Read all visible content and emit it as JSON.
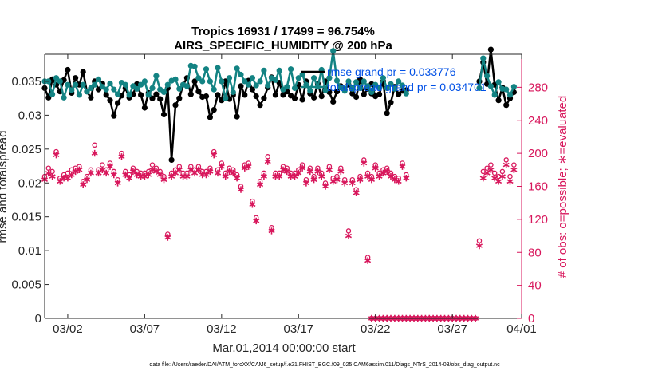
{
  "chart_data": {
    "type": "line",
    "title": "Tropics 16931 / 17499 = 96.754%",
    "subtitle": "AIRS_SPECIFIC_HUMIDITY @ 200 hPa",
    "xlabel": "Mar.01,2014 00:00:00 start",
    "ylabel": "rmse and totalspread",
    "y2label": "# of obs: o=possible; ∗=evaluated",
    "footer": "data file: /Users/raeder/DAI/ATM_forcXX/CAM6_setup/f.e21.FHIST_BGC.f09_025.CAM6assim.011/Diags_NTrS_2014-03/obs_diag_output.nc",
    "legend": [
      "rmse grand pr = 0.033776",
      "totalspread grand pr = 0.034701"
    ],
    "xlim": [
      0.5,
      31.5
    ],
    "ylim": [
      0,
      0.039
    ],
    "y2lim": [
      0,
      320
    ],
    "x_ticks": [
      {
        "x": 2,
        "label": "03/02"
      },
      {
        "x": 7,
        "label": "03/07"
      },
      {
        "x": 12,
        "label": "03/12"
      },
      {
        "x": 17,
        "label": "03/17"
      },
      {
        "x": 22,
        "label": "03/22"
      },
      {
        "x": 27,
        "label": "03/27"
      },
      {
        "x": 32,
        "label": "04/01"
      }
    ],
    "y_ticks": [
      "0",
      "0.005",
      "0.01",
      "0.015",
      "0.02",
      "0.025",
      "0.03",
      "0.035"
    ],
    "y_tick_values": [
      0,
      0.005,
      0.01,
      0.015,
      0.02,
      0.025,
      0.03,
      0.035
    ],
    "y2_ticks": [
      "0",
      "40",
      "80",
      "120",
      "160",
      "200",
      "240",
      "280"
    ],
    "y2_tick_values": [
      0,
      40,
      80,
      120,
      160,
      200,
      240,
      280
    ],
    "colors": {
      "rmse": "#000000",
      "spread": "#138383",
      "obs": "#d8175c"
    },
    "series": [
      {
        "name": "rmse",
        "segments": [
          {
            "x0": 0.5,
            "dx": 0.25,
            "values": [
              0.034,
              0.0326,
              0.0353,
              0.0345,
              0.0335,
              0.0352,
              0.0367,
              0.0333,
              0.0355,
              0.0345,
              0.0364,
              0.0335,
              0.0326,
              0.035,
              0.0338,
              0.0347,
              0.033,
              0.0322,
              0.0299,
              0.0318,
              0.0329,
              0.034,
              0.0326,
              0.0331,
              0.0346,
              0.033,
              0.0311,
              0.0333,
              0.0325,
              0.0331,
              0.0324,
              0.0301,
              0.034,
              0.0234,
              0.0315,
              0.0325,
              0.0345,
              0.0355,
              0.0331,
              0.035,
              0.0335,
              0.0327,
              0.0328,
              0.0297,
              0.0308,
              0.033,
              0.0322,
              0.035,
              0.0324,
              0.033,
              0.0298,
              0.0343,
              0.033,
              0.0351,
              0.0338,
              0.0328,
              0.0315,
              0.0325,
              0.0341,
              0.0356,
              0.033,
              0.0348,
              0.033,
              0.0335,
              0.0329,
              0.0325,
              0.0345,
              0.0323,
              0.035,
              0.0332,
              0.0326,
              0.0347,
              0.0328,
              0.035,
              0.0334,
              0.032,
              0.0335,
              0.0343,
              0.0338,
              0.0345,
              0.0332,
              0.0327,
              0.0353,
              0.0331,
              0.0339,
              0.0346,
              0.0328,
              0.0331,
              0.035,
              0.0303,
              0.0319,
              0.0342,
              0.0331,
              0.0336,
              0.0337
            ]
          },
          {
            "x0": 21.5,
            "dx": 0.25,
            "values": [
              0.0341,
              0.0332
            ]
          },
          {
            "x0": 28.75,
            "dx": 0.25,
            "values": [
              0.035,
              0.0378,
              0.0346,
              0.0397,
              0.0345,
              0.0322,
              0.0341,
              0.0315,
              0.0325,
              0.0334
            ]
          }
        ]
      },
      {
        "name": "spread",
        "segments": [
          {
            "x0": 0.5,
            "dx": 0.25,
            "values": [
              0.035,
              0.035,
              0.0331,
              0.0355,
              0.035,
              0.0326,
              0.0345,
              0.0337,
              0.0345,
              0.033,
              0.0345,
              0.0335,
              0.034,
              0.0345,
              0.0353,
              0.0342,
              0.0338,
              0.0347,
              0.0338,
              0.0331,
              0.0348,
              0.0345,
              0.033,
              0.0343,
              0.0339,
              0.0345,
              0.035,
              0.033,
              0.034,
              0.0358,
              0.0338,
              0.0334,
              0.0345,
              0.0351,
              0.0353,
              0.0339,
              0.0345,
              0.0343,
              0.0373,
              0.0372,
              0.0355,
              0.035,
              0.0368,
              0.035,
              0.0338,
              0.037,
              0.035,
              0.0325,
              0.0355,
              0.0334,
              0.0369,
              0.036,
              0.035,
              0.0345,
              0.0355,
              0.0344,
              0.035,
              0.0366,
              0.0344,
              0.0355,
              0.0352,
              0.0366,
              0.0338,
              0.0342,
              0.0368,
              0.034,
              0.0355,
              0.036,
              0.0345,
              0.0336,
              0.0355,
              0.0342,
              0.0367,
              0.0337,
              0.0355,
              0.0395,
              0.0351,
              0.0341,
              0.0336,
              0.035,
              0.0339,
              0.0349,
              0.034,
              0.035,
              0.0342,
              0.0334,
              0.0345,
              0.0341,
              0.0355,
              0.034,
              0.0346,
              0.0339,
              0.035,
              0.0344,
              0.0332
            ]
          },
          {
            "x0": 21.5,
            "dx": 0.25,
            "values": [
              0.0343,
              0.0336
            ]
          },
          {
            "x0": 28.75,
            "dx": 0.25,
            "values": [
              0.034,
              0.0384,
              0.0358,
              0.0343,
              0.033,
              0.0349,
              0.0339,
              0.0338,
              0.033,
              0.0342
            ]
          }
        ]
      }
    ],
    "obs_possible": [
      {
        "x0": 0.5,
        "dx": 0.25,
        "values": [
          172,
          182,
          178,
          202,
          170,
          174,
          176,
          180,
          182,
          184,
          166,
          172,
          180,
          210,
          180,
          186,
          180,
          188,
          178,
          168,
          200,
          178,
          174,
          182,
          178,
          176,
          176,
          178,
          186,
          182,
          178,
          172,
          102,
          176,
          180,
          184,
          176,
          176,
          184,
          180,
          184,
          178,
          178,
          182,
          202,
          180,
          188,
          176,
          182,
          180,
          174,
          160,
          186,
          188,
          142,
          122,
          166,
          176,
          196,
          110,
          176,
          176,
          184,
          182,
          176,
          176,
          180,
          186,
          168,
          182,
          172,
          182,
          176,
          164,
          184,
          170,
          172,
          182,
          168,
          106,
          168,
          156,
          172,
          192,
          176,
          172,
          186,
          176,
          180,
          182,
          176,
          172,
          170,
          188,
          174
        ]
      },
      {
        "x0": 21.5,
        "dx": 0.25,
        "values": [
          74
        ]
      },
      {
        "x0": 28.75,
        "dx": 0.25,
        "values": [
          94,
          178,
          182,
          186,
          176,
          172,
          178,
          192,
          172,
          186
        ]
      }
    ],
    "obs_evaluated_main": [
      {
        "x0": 0.5,
        "dx": 0.25,
        "values": [
          168,
          176,
          172,
          198,
          166,
          170,
          170,
          174,
          178,
          180,
          162,
          168,
          176,
          200,
          176,
          180,
          176,
          184,
          174,
          164,
          196,
          174,
          170,
          178,
          174,
          172,
          172,
          174,
          180,
          178,
          174,
          168,
          98,
          172,
          176,
          180,
          172,
          172,
          180,
          176,
          180,
          174,
          174,
          178,
          198,
          176,
          184,
          172,
          178,
          176,
          170,
          156,
          182,
          184,
          138,
          118,
          162,
          172,
          190,
          106,
          172,
          172,
          180,
          178,
          172,
          172,
          176,
          182,
          164,
          178,
          168,
          178,
          172,
          160,
          180,
          166,
          168,
          178,
          164,
          100,
          164,
          152,
          168,
          188,
          172,
          168,
          182,
          172,
          176,
          178,
          172,
          168,
          166,
          184,
          170
        ]
      },
      {
        "x0": 21.5,
        "dx": 0.25,
        "values": [
          70
        ]
      },
      {
        "x0": 28.75,
        "dx": 0.25,
        "values": [
          88,
          170,
          176,
          180,
          170,
          166,
          172,
          186,
          166,
          180
        ]
      }
    ],
    "obs_zero_run": {
      "x_start": 21.75,
      "x_end": 28.5,
      "dx": 0.25,
      "value": 0
    }
  }
}
